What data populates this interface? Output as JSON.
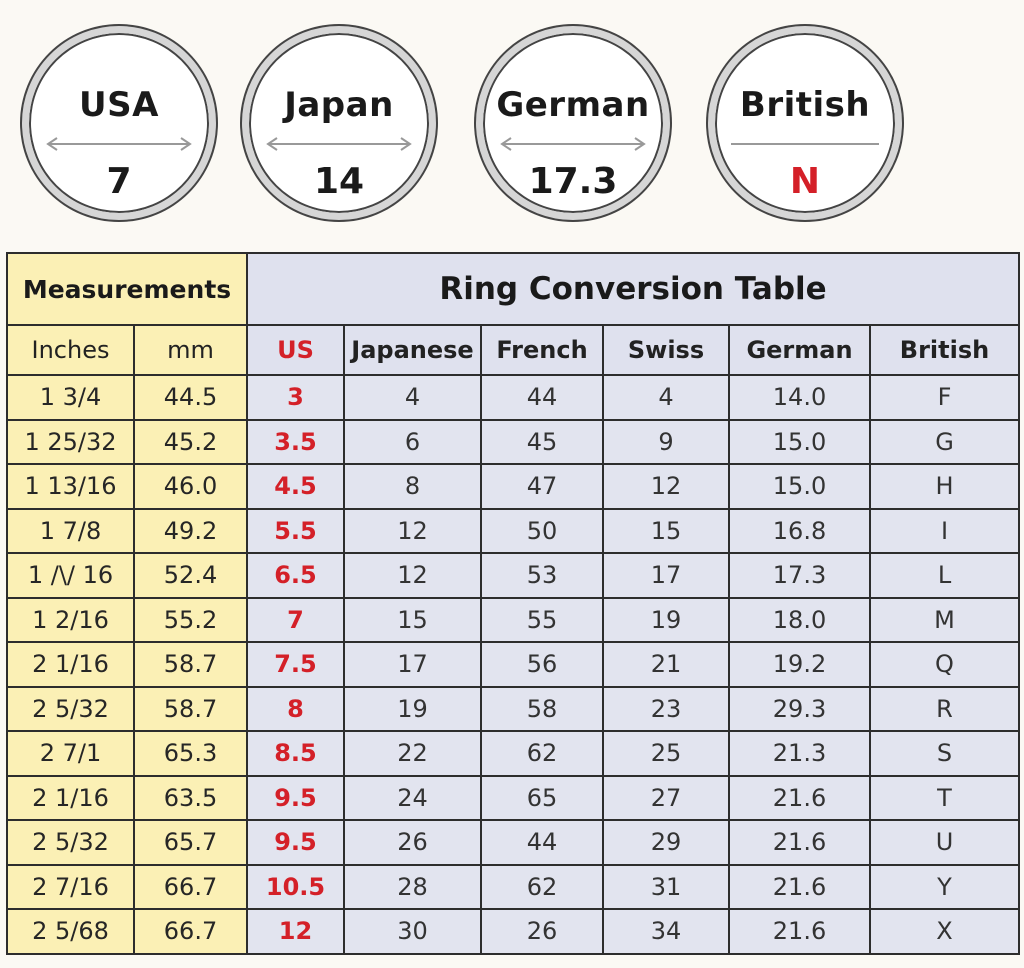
{
  "circles": [
    {
      "name": "USA",
      "value": "7",
      "has_arrow": true,
      "value_color": "#1a1a1a"
    },
    {
      "name": "Japan",
      "value": "14",
      "has_arrow": true,
      "value_color": "#1a1a1a"
    },
    {
      "name": "German",
      "value": "17.3",
      "has_arrow": true,
      "value_color": "#1a1a1a"
    },
    {
      "name": "British",
      "value": "N",
      "has_arrow": false,
      "value_color": "#d42028"
    }
  ],
  "table": {
    "measurements_header": "Measurements",
    "title": "Ring Conversion Table",
    "columns": [
      "Inches",
      "mm",
      "US",
      "Japanese",
      "French",
      "Swiss",
      "German",
      "British"
    ],
    "rows": [
      [
        "1 3/4",
        "44.5",
        "3",
        "4",
        "44",
        "4",
        "14.0",
        "F"
      ],
      [
        "1 25/32",
        "45.2",
        "3.5",
        "6",
        "45",
        "9",
        "15.0",
        "G"
      ],
      [
        "1 13/16",
        "46.0",
        "4.5",
        "8",
        "47",
        "12",
        "15.0",
        "H"
      ],
      [
        "1 7/8",
        "49.2",
        "5.5",
        "12",
        "50",
        "15",
        "16.8",
        "I"
      ],
      [
        "1 /\\/ 16",
        "52.4",
        "6.5",
        "12",
        "53",
        "17",
        "17.3",
        "L"
      ],
      [
        "1 2/16",
        "55.2",
        "7",
        "15",
        "55",
        "19",
        "18.0",
        "M"
      ],
      [
        "2 1/16",
        "58.7",
        "7.5",
        "17",
        "56",
        "21",
        "19.2",
        "Q"
      ],
      [
        "2 5/32",
        "58.7",
        "8",
        "19",
        "58",
        "23",
        "29.3",
        "R"
      ],
      [
        "2 7/1",
        "65.3",
        "8.5",
        "22",
        "62",
        "25",
        "21.3",
        "S"
      ],
      [
        "2 1/16",
        "63.5",
        "9.5",
        "24",
        "65",
        "27",
        "21.6",
        "T"
      ],
      [
        "2 5/32",
        "65.7",
        "9.5",
        "26",
        "44",
        "29",
        "21.6",
        "U"
      ],
      [
        "2 7/16",
        "66.7",
        "10.5",
        "28",
        "62",
        "31",
        "21.6",
        "Y"
      ],
      [
        "2 5/68",
        "66.7",
        "12",
        "30",
        "26",
        "34",
        "21.6",
        "X"
      ]
    ]
  },
  "colors": {
    "accent_red": "#d42028",
    "yellow_bg": "#fbf0b5",
    "blue_bg": "#dfe1ee",
    "border": "#2d2d2d"
  }
}
